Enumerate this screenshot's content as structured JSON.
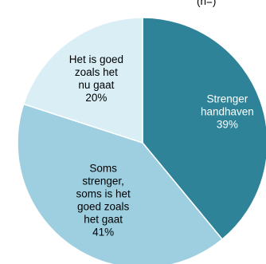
{
  "header": {
    "partial_text": "(n=)"
  },
  "chart_data": {
    "type": "pie",
    "title": "",
    "start_angle_deg": 0,
    "direction": "clockwise",
    "slices": [
      {
        "label_lines": [
          "Strenger",
          "handhaven"
        ],
        "value": 39,
        "value_label": "39%",
        "color": "#2e8398",
        "label_color": "#ffffff"
      },
      {
        "label_lines": [
          "Soms",
          "strenger,",
          "soms is het",
          "goed zoals",
          "het gaat"
        ],
        "value": 41,
        "value_label": "41%",
        "color": "#9dcfe0",
        "label_color": "#000000"
      },
      {
        "label_lines": [
          "Het is goed",
          "zoals het",
          "nu gaat"
        ],
        "value": 20,
        "value_label": "20%",
        "color": "#d9eef5",
        "label_color": "#000000"
      }
    ]
  }
}
